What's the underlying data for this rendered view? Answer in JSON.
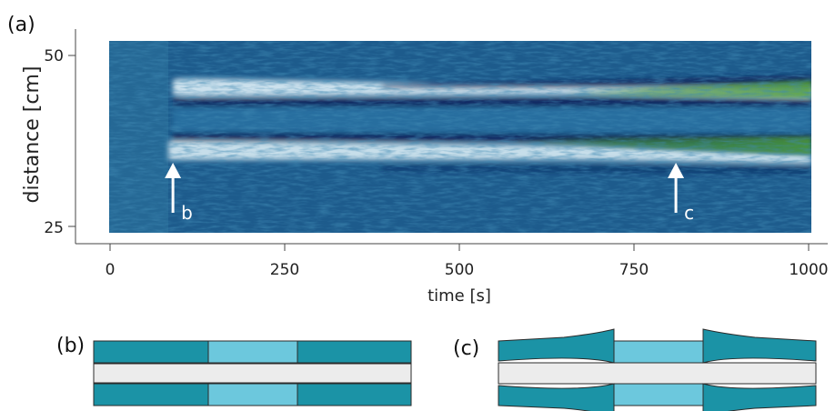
{
  "panels": {
    "a": "(a)",
    "b": "(b)",
    "c": "(c)"
  },
  "chart_data": {
    "type": "heatmap",
    "xlabel": "time [s]",
    "ylabel": "distance [cm]",
    "xlim": [
      0,
      1000
    ],
    "ylim": [
      25,
      50
    ],
    "x_ticks": [
      0,
      250,
      500,
      750,
      1000
    ],
    "y_ticks": [
      25,
      50
    ],
    "colors": {
      "background": "#1d5b8c",
      "bright_band": "#dff0f7",
      "dark_band": "#0a1f5a",
      "green_band": "#3f8a32"
    },
    "features": [
      {
        "label": "b",
        "time": 90
      },
      {
        "label": "c",
        "time": 810
      }
    ]
  },
  "diagram": {
    "colors": {
      "outer": "#1b93a6",
      "inner": "#6cc8dd",
      "core": "#ececec",
      "stroke": "#2b2b2b"
    }
  }
}
